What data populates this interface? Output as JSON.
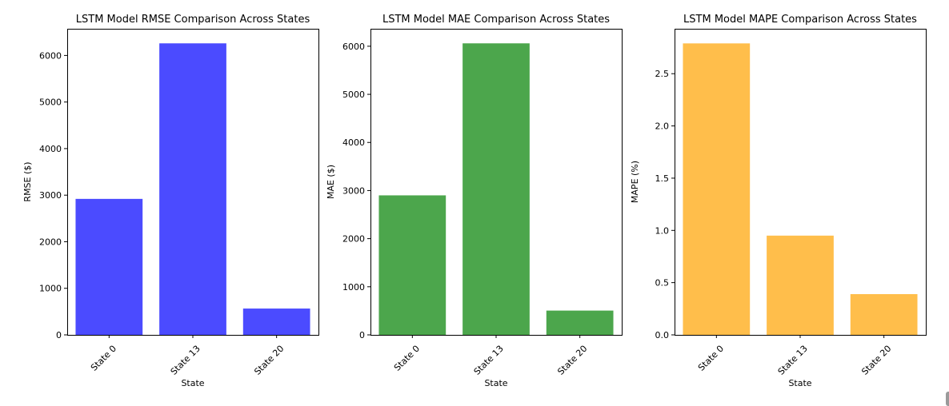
{
  "chart_data": [
    {
      "type": "bar",
      "title": "LSTM Model RMSE Comparison Across States",
      "xlabel": "State",
      "ylabel": "RMSE ($)",
      "categories": [
        "State 0",
        "State 13",
        "State 20"
      ],
      "values": [
        2920,
        6260,
        565
      ],
      "ylim": [
        0,
        6573
      ],
      "yticks": [
        0,
        1000,
        2000,
        3000,
        4000,
        5000,
        6000
      ],
      "ytick_labels": [
        "0",
        "1000",
        "2000",
        "3000",
        "4000",
        "5000",
        "6000"
      ],
      "bar_color": "#4b4bff",
      "grid": false,
      "legend": false
    },
    {
      "type": "bar",
      "title": "LSTM Model MAE Comparison Across States",
      "xlabel": "State",
      "ylabel": "MAE ($)",
      "categories": [
        "State 0",
        "State 13",
        "State 20"
      ],
      "values": [
        2900,
        6060,
        505
      ],
      "ylim": [
        0,
        6363
      ],
      "yticks": [
        0,
        1000,
        2000,
        3000,
        4000,
        5000,
        6000
      ],
      "ytick_labels": [
        "0",
        "1000",
        "2000",
        "3000",
        "4000",
        "5000",
        "6000"
      ],
      "bar_color": "#4ca64c",
      "grid": false,
      "legend": false
    },
    {
      "type": "bar",
      "title": "LSTM Model MAPE Comparison Across States",
      "xlabel": "State",
      "ylabel": "MAPE (%)",
      "categories": [
        "State 0",
        "State 13",
        "State 20"
      ],
      "values": [
        2.79,
        0.95,
        0.39
      ],
      "ylim": [
        0,
        2.93
      ],
      "yticks": [
        0,
        0.5,
        1,
        1.5,
        2,
        2.5
      ],
      "ytick_labels": [
        "0.0",
        "0.5",
        "1.0",
        "1.5",
        "2.0",
        "2.5"
      ],
      "bar_color": "#ffbe4b",
      "grid": false,
      "legend": false
    }
  ]
}
